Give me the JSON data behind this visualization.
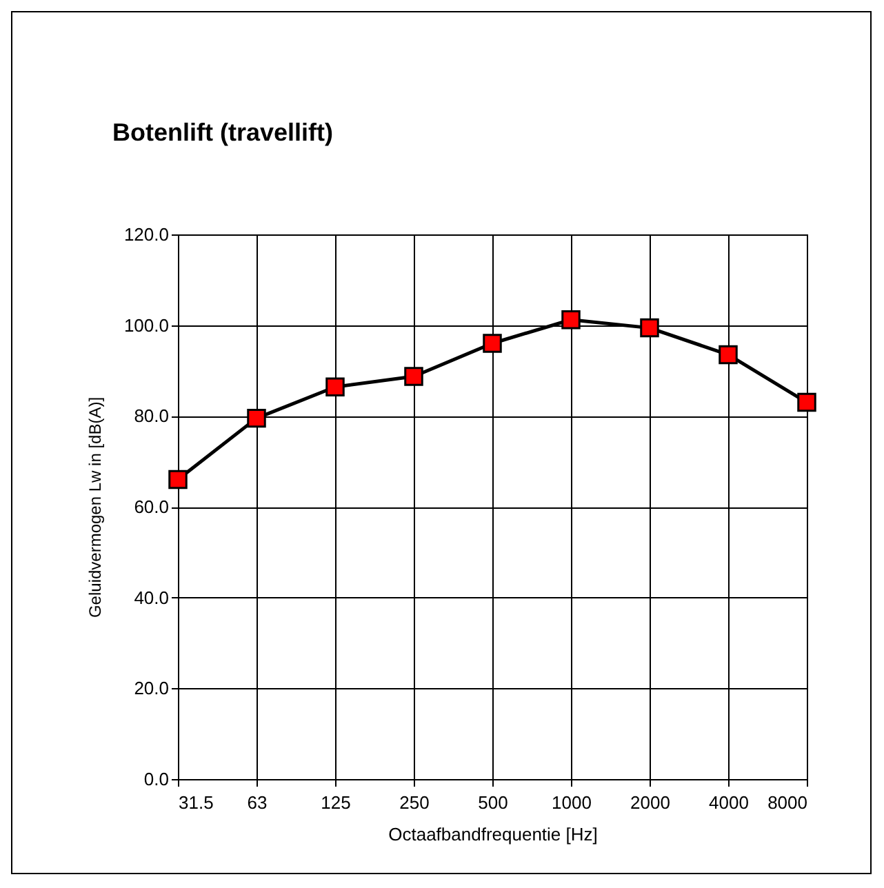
{
  "chart_data": {
    "type": "line",
    "title": "Botenlift (travellift)",
    "xlabel": "Octaafbandfrequentie [Hz]",
    "ylabel": "Geluidvermogen Lw in  [dB(A)]",
    "categories": [
      "31.5",
      "63",
      "125",
      "250",
      "500",
      "1000",
      "2000",
      "4000",
      "8000"
    ],
    "series": [
      {
        "color": "#ff0000",
        "values": [
          66.0,
          79.5,
          86.4,
          88.7,
          96.0,
          101.2,
          99.4,
          93.5,
          83.0
        ]
      }
    ],
    "ylim": [
      0,
      120
    ],
    "yticks": [
      {
        "value": 0,
        "label": "0.0"
      },
      {
        "value": 20,
        "label": "20.0"
      },
      {
        "value": 40,
        "label": "40.0"
      },
      {
        "value": 60,
        "label": "60.0"
      },
      {
        "value": 80,
        "label": "80.0"
      },
      {
        "value": 100,
        "label": "100.0"
      },
      {
        "value": 120,
        "label": "120.0"
      }
    ],
    "grid": true,
    "marker": "square",
    "line_style": "solid"
  }
}
